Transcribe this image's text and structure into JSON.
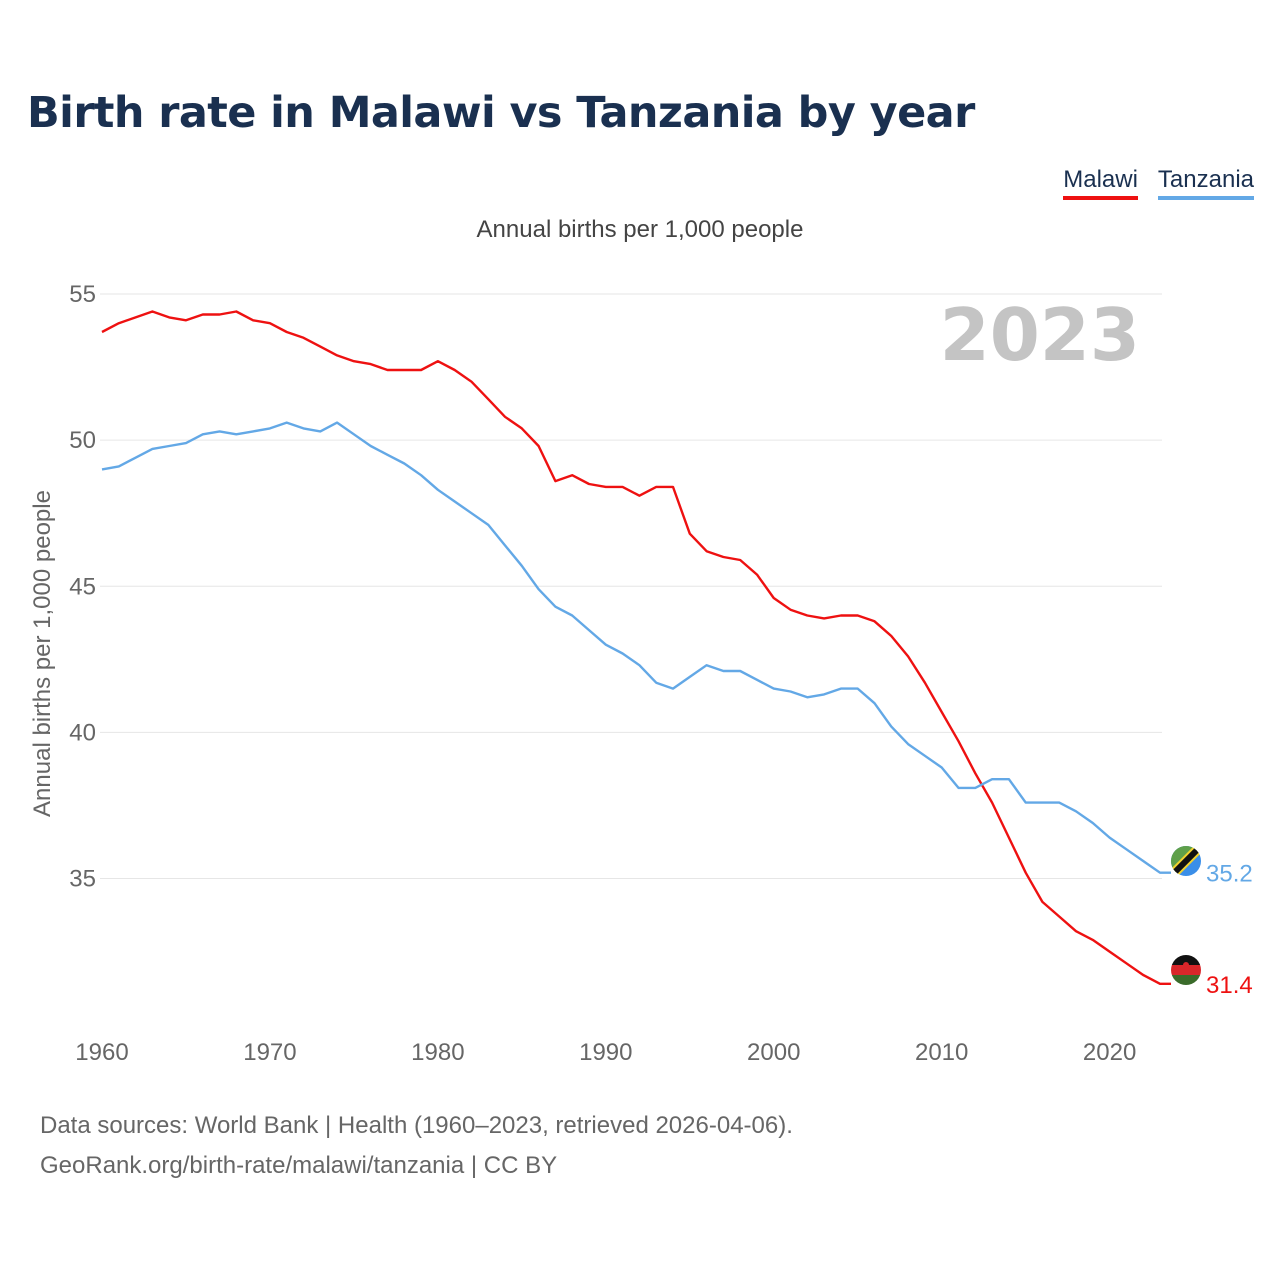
{
  "title": "Birth rate in Malawi vs Tanzania by year",
  "subtitle": "Annual births per 1,000 people",
  "year_label": "2023",
  "legend": [
    {
      "name": "Malawi",
      "color": "#ee1111"
    },
    {
      "name": "Tanzania",
      "color": "#63a8e6"
    }
  ],
  "footer": {
    "line1": "Data sources: World Bank | Health (1960–2023, retrieved 2026-04-06).",
    "line2": "GeoRank.org/birth-rate/malawi/tanzania | CC BY"
  },
  "chart_data": {
    "type": "line",
    "title": "Birth rate in Malawi vs Tanzania by year",
    "xlabel": "",
    "ylabel": "Annual births per 1,000 people",
    "xlim": [
      1960,
      2023
    ],
    "ylim": [
      30.4,
      55
    ],
    "x_ticks": [
      1960,
      1970,
      1980,
      1990,
      2000,
      2010,
      2020
    ],
    "y_ticks": [
      35,
      40,
      45,
      50,
      55
    ],
    "grid": true,
    "legend_position": "top-right",
    "x": [
      1960,
      1961,
      1962,
      1963,
      1964,
      1965,
      1966,
      1967,
      1968,
      1969,
      1970,
      1971,
      1972,
      1973,
      1974,
      1975,
      1976,
      1977,
      1978,
      1979,
      1980,
      1981,
      1982,
      1983,
      1984,
      1985,
      1986,
      1987,
      1988,
      1989,
      1990,
      1991,
      1992,
      1993,
      1994,
      1995,
      1996,
      1997,
      1998,
      1999,
      2000,
      2001,
      2002,
      2003,
      2004,
      2005,
      2006,
      2007,
      2008,
      2009,
      2010,
      2011,
      2012,
      2013,
      2014,
      2015,
      2016,
      2017,
      2018,
      2019,
      2020,
      2021,
      2022,
      2023
    ],
    "series": [
      {
        "name": "Malawi",
        "color": "#ee1111",
        "end_label": "31.4",
        "values": [
          53.7,
          54.0,
          54.2,
          54.4,
          54.2,
          54.1,
          54.3,
          54.3,
          54.4,
          54.1,
          54.0,
          53.7,
          53.5,
          53.2,
          52.9,
          52.7,
          52.6,
          52.4,
          52.4,
          52.4,
          52.7,
          52.4,
          52.0,
          51.4,
          50.8,
          50.4,
          49.8,
          48.6,
          48.8,
          48.5,
          48.4,
          48.4,
          48.1,
          48.4,
          48.4,
          46.8,
          46.2,
          46.0,
          45.9,
          45.4,
          44.6,
          44.2,
          44.0,
          43.9,
          44.0,
          44.0,
          43.8,
          43.3,
          42.6,
          41.7,
          40.7,
          39.7,
          38.6,
          37.6,
          36.4,
          35.2,
          34.2,
          33.7,
          33.2,
          32.9,
          32.5,
          32.1,
          31.7,
          31.4
        ]
      },
      {
        "name": "Tanzania",
        "color": "#63a8e6",
        "end_label": "35.2",
        "values": [
          49.0,
          49.1,
          49.4,
          49.7,
          49.8,
          49.9,
          50.2,
          50.3,
          50.2,
          50.3,
          50.4,
          50.6,
          50.4,
          50.3,
          50.6,
          50.2,
          49.8,
          49.5,
          49.2,
          48.8,
          48.3,
          47.9,
          47.5,
          47.1,
          46.4,
          45.7,
          44.9,
          44.3,
          44.0,
          43.5,
          43.0,
          42.7,
          42.3,
          41.7,
          41.5,
          41.9,
          42.3,
          42.1,
          42.1,
          41.8,
          41.5,
          41.4,
          41.2,
          41.3,
          41.5,
          41.5,
          41.0,
          40.2,
          39.6,
          39.2,
          38.8,
          38.1,
          38.1,
          38.4,
          38.4,
          37.6,
          37.6,
          37.6,
          37.3,
          36.9,
          36.4,
          36.0,
          35.6,
          35.2
        ]
      }
    ]
  }
}
